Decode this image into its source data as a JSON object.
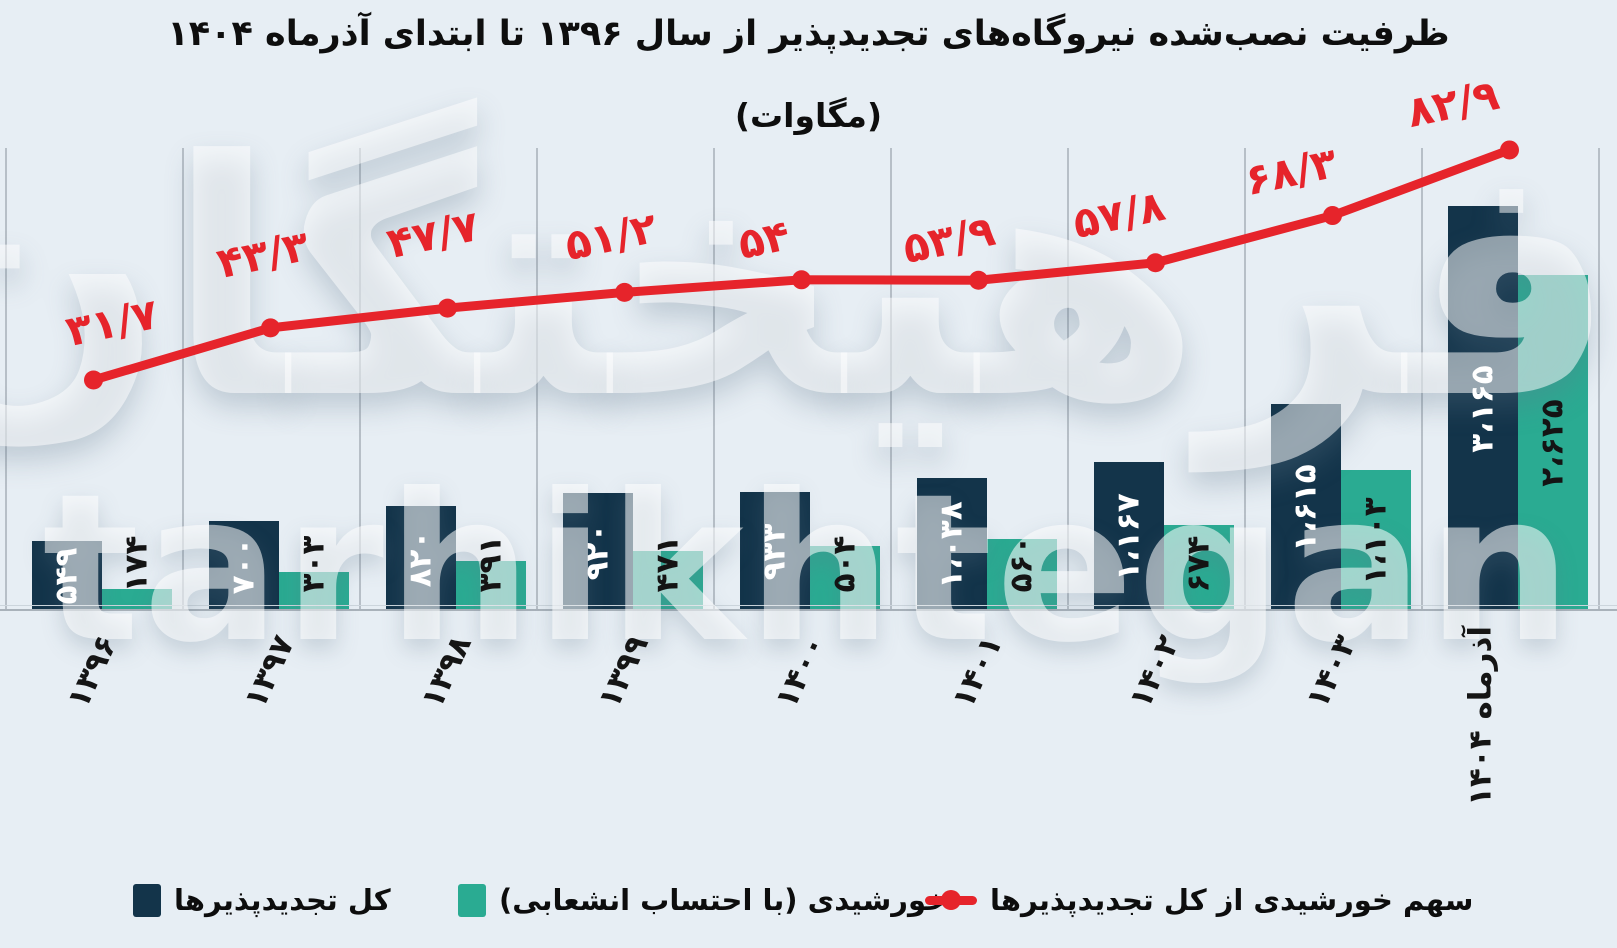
{
  "title": {
    "line1": "ظرفیت نصب‌شده نیروگاه‌های تجدیدپذیر از سال ۱۳۹۶ تا ابتدای آذرماه ۱۴۰۴",
    "line2": "(مگاوات)"
  },
  "watermark": {
    "persian": "فرهیختگان",
    "latin": "tarhikhtegan"
  },
  "colors": {
    "background": "#e7eef4",
    "total_bar": "#13344a",
    "solar_bar": "#2aab92",
    "share_line": "#e6242b",
    "grid": "#b7bfc7",
    "bar_label_on_total": "#ffffff",
    "bar_label_on_solar": "#141414"
  },
  "legend": {
    "items": [
      {
        "key": "total",
        "label": "کل تجدیدپذیرها"
      },
      {
        "key": "solar",
        "label": "خورشیدی (با احتساب انشعابی)"
      },
      {
        "key": "share",
        "label": "سهم خورشیدی از کل تجدیدپذیرها"
      }
    ]
  },
  "chart_data": {
    "type": "bar+line combo",
    "unit_label": "(مگاوات)",
    "categories": [
      "۱۳۹۶",
      "۱۳۹۷",
      "۱۳۹۸",
      "۱۳۹۹",
      "۱۴۰۰",
      "۱۴۰۱",
      "۱۴۰۲",
      "۱۴۰۳",
      "آذرماه ۱۴۰۴"
    ],
    "categories_transliterated": [
      "1396",
      "1397",
      "1398",
      "1399",
      "1400",
      "1401",
      "1402",
      "1403",
      "Azar 1404"
    ],
    "series": [
      {
        "name": "کل تجدیدپذیرها",
        "type": "bar",
        "values": [
          549,
          700,
          820,
          920,
          933,
          1038,
          1167,
          1615,
          3165
        ],
        "value_labels": [
          "۵۴۹",
          "۷۰۰",
          "۸۲۰",
          "۹۲۰",
          "۹۳۳",
          "۱،۰۳۸",
          "۱،۱۶۷",
          "۱،۶۱۵",
          "۳،۱۶۵"
        ]
      },
      {
        "name": "خورشیدی (با احتساب انشعابی)",
        "type": "bar",
        "values": [
          174,
          303,
          391,
          471,
          504,
          560,
          674,
          1103,
          2625
        ],
        "value_labels": [
          "۱۷۴",
          "۳۰۳",
          "۳۹۱",
          "۴۷۱",
          "۵۰۴",
          "۵۶۰",
          "۶۷۴",
          "۱،۱۰۳",
          "۲،۶۲۵"
        ]
      },
      {
        "name": "سهم خورشیدی از کل تجدیدپذیرها",
        "type": "line",
        "values": [
          31.7,
          43.3,
          47.7,
          51.2,
          54,
          53.9,
          57.8,
          68.3,
          82.9
        ],
        "value_labels": [
          "۳۱/۷",
          "۴۳/۳",
          "۴۷/۷",
          "۵۱/۲",
          "۵۴",
          "۵۳/۹",
          "۵۷/۸",
          "۶۸/۳",
          "۸۲/۹"
        ]
      }
    ],
    "grid": "vertical-only",
    "y_axis_visible": false,
    "legend_position": "bottom"
  }
}
